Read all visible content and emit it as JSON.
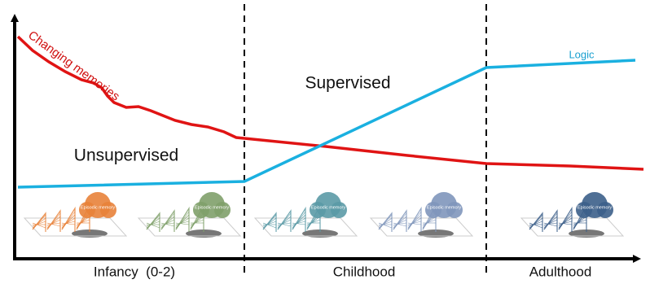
{
  "regions": {
    "unsupervised": "Unsupervised",
    "supervised": "Supervised"
  },
  "curves": [
    {
      "label": "Changing memories"
    },
    {
      "label": "Logic"
    }
  ],
  "phases": [
    {
      "label": "Infancy  (0-2)"
    },
    {
      "label": "Childhood"
    },
    {
      "label": "Adulthood"
    }
  ],
  "modules": [
    {
      "label": "Episodic memory"
    },
    {
      "label": "Episodic memory"
    },
    {
      "label": "Episodic memory"
    },
    {
      "label": "Episodic memory"
    },
    {
      "label": "Episodic memory"
    }
  ]
}
